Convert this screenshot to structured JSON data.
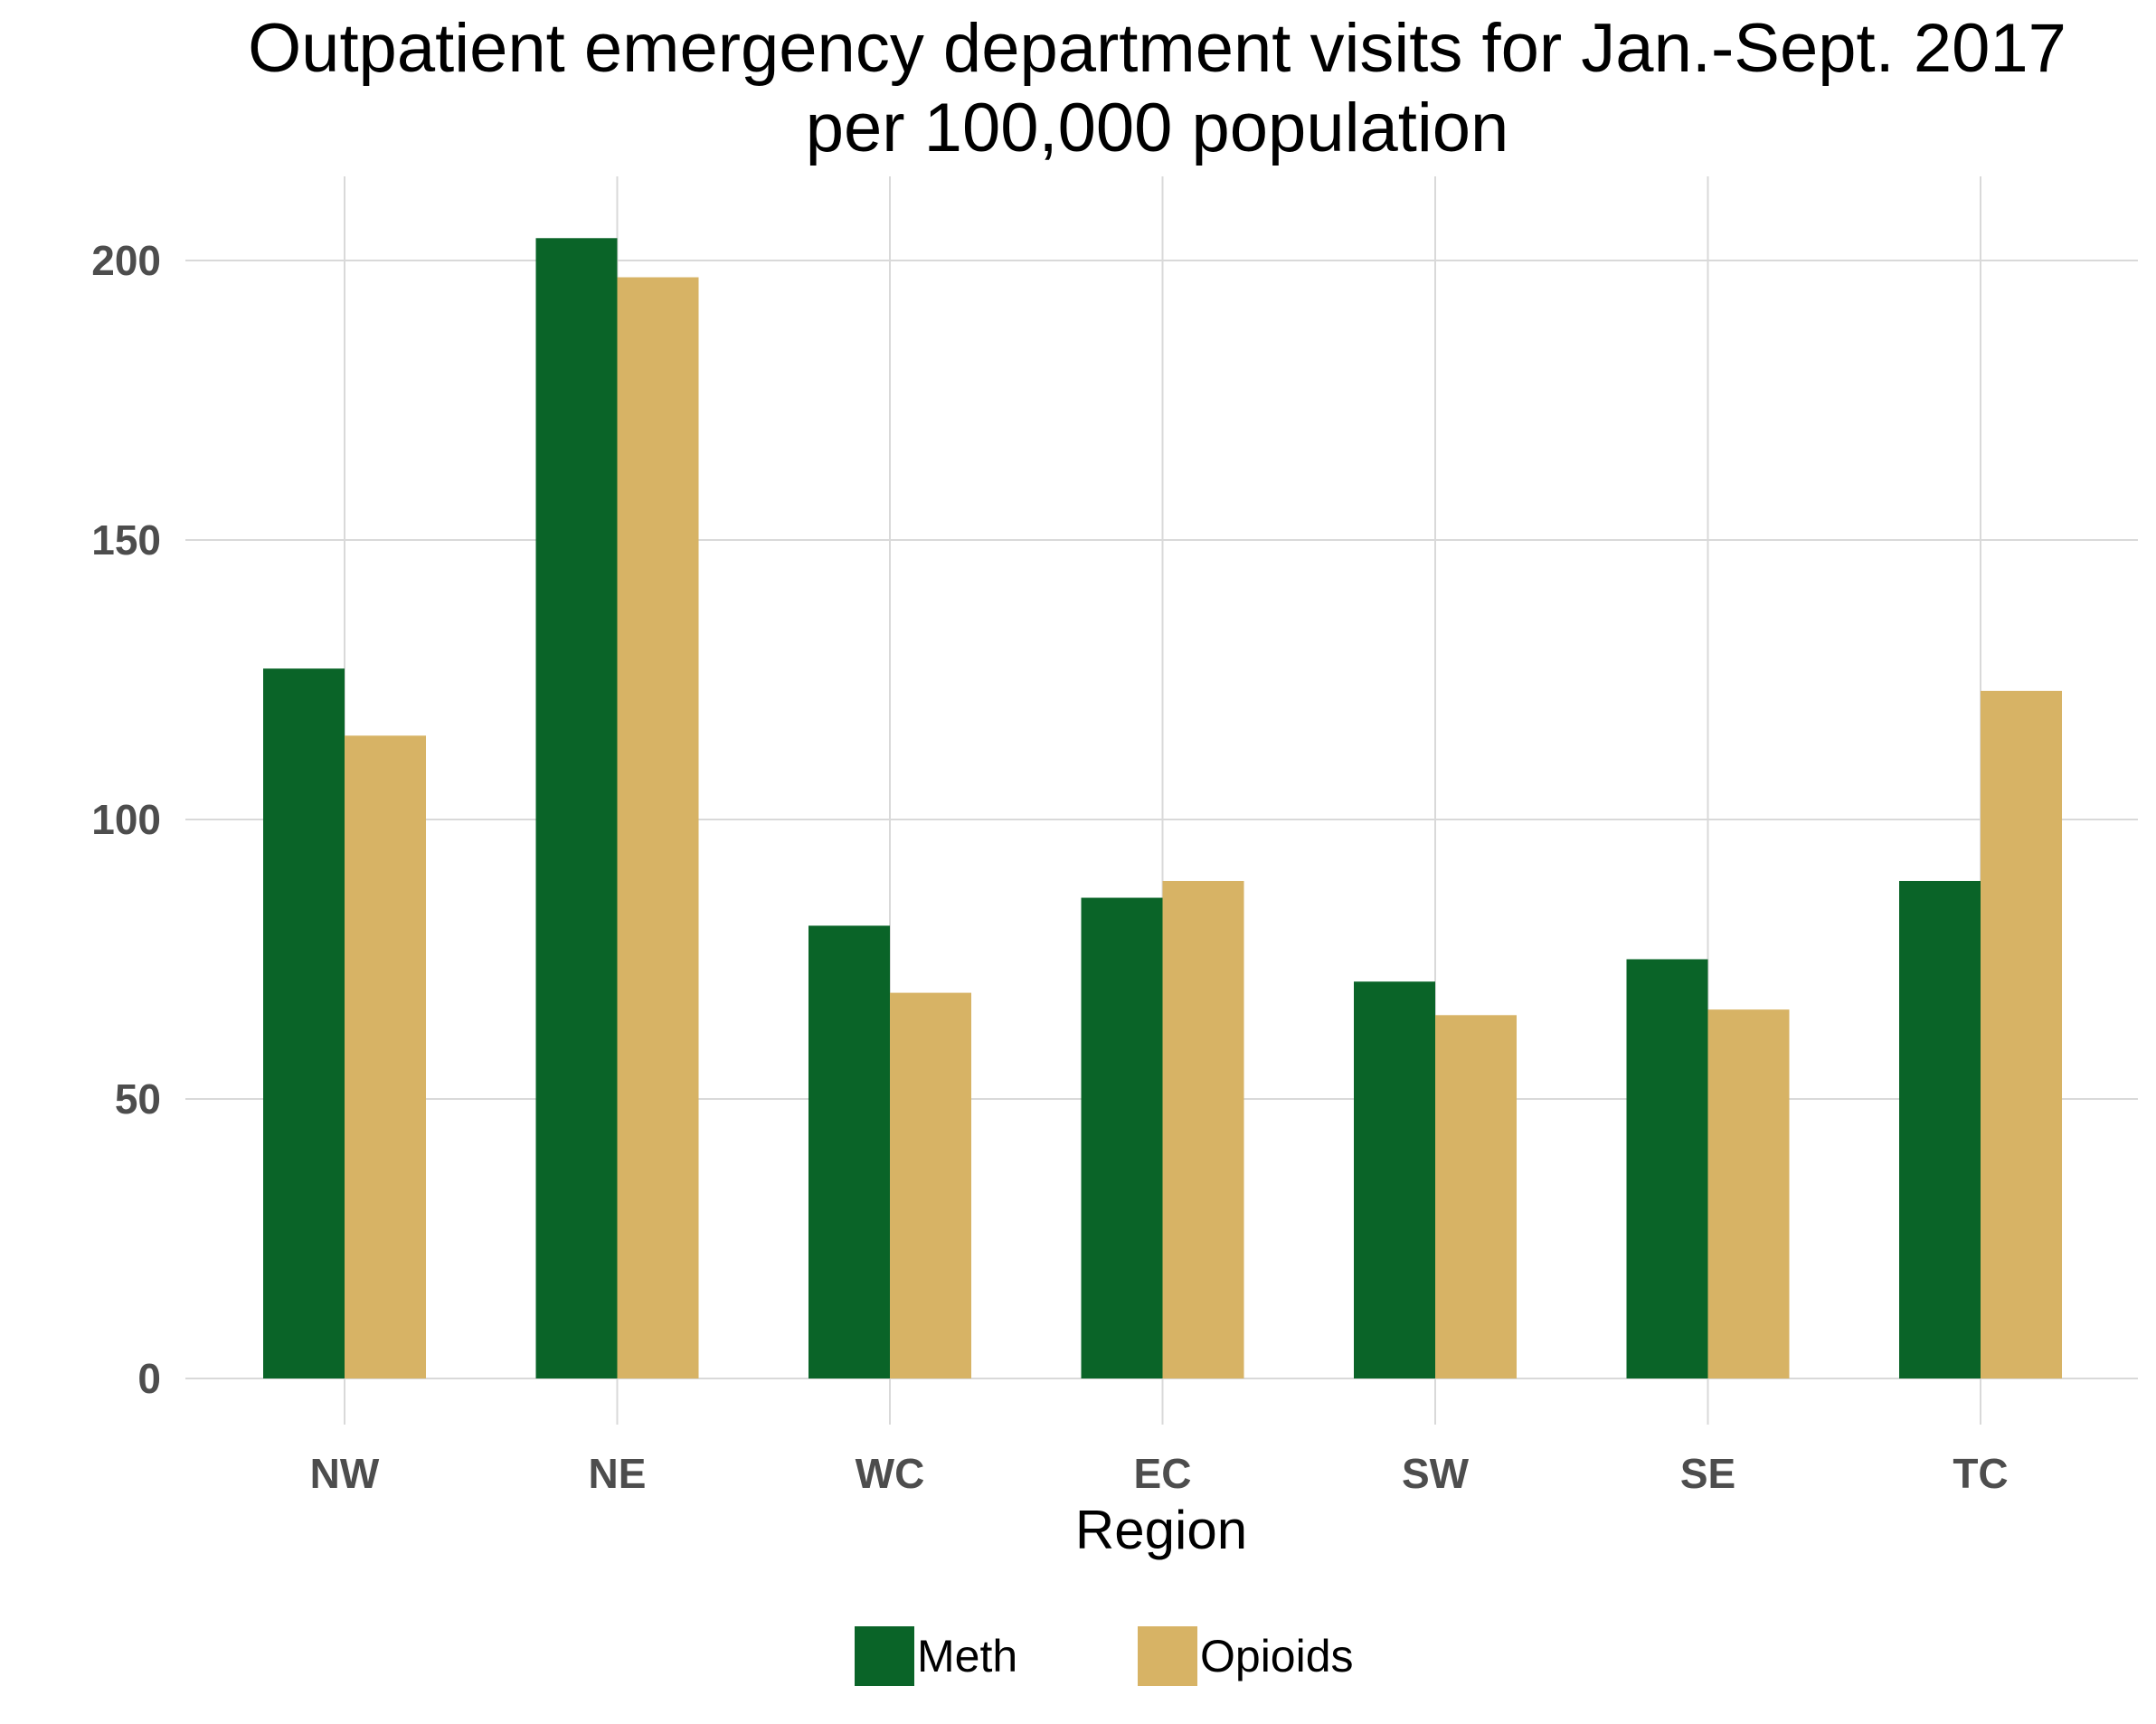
{
  "chart_data": {
    "type": "bar",
    "title_line1": "Outpatient emergency department visits for Jan.-Sept. 2017",
    "title_line2": "per 100,000 population",
    "xlabel": "Region",
    "ylabel": "",
    "categories": [
      "NW",
      "NE",
      "WC",
      "EC",
      "SW",
      "SE",
      "TC"
    ],
    "series": [
      {
        "name": "Meth",
        "color": "#0a6428",
        "values": [
          127,
          204,
          81,
          86,
          71,
          75,
          89
        ]
      },
      {
        "name": "Opioids",
        "color": "#d7b365",
        "values": [
          115,
          197,
          69,
          89,
          65,
          66,
          123
        ]
      }
    ],
    "ylim": [
      0,
      215
    ],
    "yticks": [
      0,
      50,
      100,
      150,
      200
    ],
    "grid": true,
    "legend_position": "bottom"
  }
}
